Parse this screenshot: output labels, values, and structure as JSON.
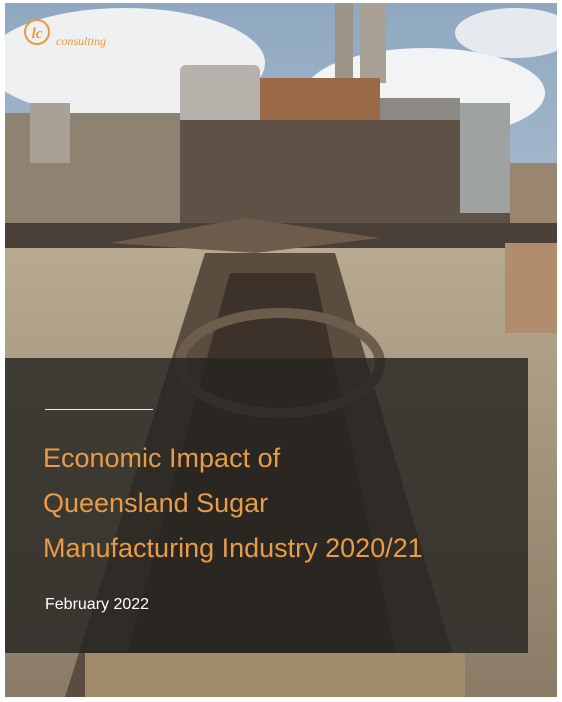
{
  "logo": {
    "mark": "lc",
    "name": "lawrence",
    "tagline": "consulting"
  },
  "cover": {
    "title_lines": [
      "Economic Impact of",
      "Queensland Sugar",
      "Manufacturing Industry 2020/21"
    ],
    "date": "February 2022"
  }
}
